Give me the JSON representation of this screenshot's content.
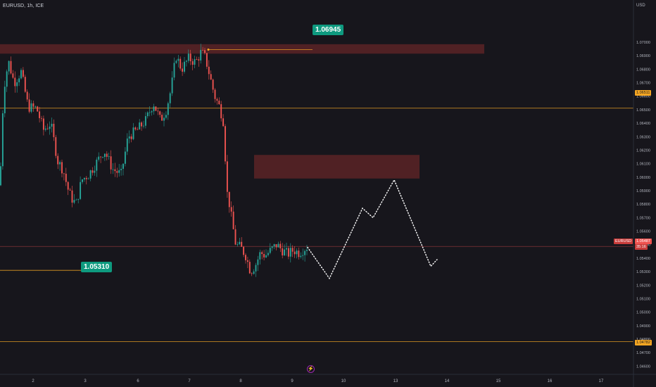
{
  "header": {
    "symbol": "EURUSD, 1h, ICE",
    "currency": "USD"
  },
  "colors": {
    "background": "#17161c",
    "bullish": "#26a69a",
    "bearish": "#ef5350",
    "supply_zone": "#5a2326",
    "horizontal_line": "#f5a623",
    "last_price_line": "#ef5350",
    "projection": "#ffffff",
    "callout": "#0e9a7f"
  },
  "annotations": {
    "high_callout": "1.06945",
    "low_callout": "1.05310",
    "level_upper": "1.06511",
    "level_lower": "1.04782",
    "symbol_tag": "EURUSD",
    "last_price": "1.05487",
    "countdown": "35:16",
    "alert_icon": "lightning-alert-icon"
  },
  "chart_data": {
    "type": "candlestick",
    "title": "EURUSD, 1h, ICE",
    "xlabel": "",
    "ylabel": "USD",
    "ylim": [
      1.0455,
      1.0725
    ],
    "grid": false,
    "x_ticks": [
      "2",
      "3",
      "6",
      "7",
      "8",
      "9",
      "10",
      "13",
      "14",
      "15",
      "16",
      "17"
    ],
    "y_ticks": [
      "1.07000",
      "1.06900",
      "1.06800",
      "1.06700",
      "1.06600",
      "1.06500",
      "1.06400",
      "1.06300",
      "1.06200",
      "1.06100",
      "1.06000",
      "1.05900",
      "1.05800",
      "1.05700",
      "1.05600",
      "1.05500",
      "1.05400",
      "1.05300",
      "1.05200",
      "1.05100",
      "1.05000",
      "1.04900",
      "1.04800",
      "1.04700",
      "1.04600"
    ],
    "price_path": [
      [
        0,
        1.0594
      ],
      [
        5,
        1.0665
      ],
      [
        12,
        1.0686
      ],
      [
        20,
        1.067
      ],
      [
        30,
        1.0678
      ],
      [
        40,
        1.0652
      ],
      [
        52,
        1.0651
      ],
      [
        62,
        1.0635
      ],
      [
        72,
        1.064
      ],
      [
        82,
        1.0612
      ],
      [
        90,
        1.0605
      ],
      [
        96,
        1.0592
      ],
      [
        101,
        1.0585
      ],
      [
        108,
        1.058
      ],
      [
        116,
        1.0598
      ],
      [
        126,
        1.0602
      ],
      [
        136,
        1.061
      ],
      [
        148,
        1.062
      ],
      [
        160,
        1.0606
      ],
      [
        172,
        1.0602
      ],
      [
        182,
        1.063
      ],
      [
        195,
        1.0635
      ],
      [
        207,
        1.0642
      ],
      [
        218,
        1.0655
      ],
      [
        228,
        1.0642
      ],
      [
        236,
        1.065
      ],
      [
        243,
        1.0665
      ],
      [
        250,
        1.069
      ],
      [
        258,
        1.068
      ],
      [
        268,
        1.0688
      ],
      [
        278,
        1.0685
      ],
      [
        286,
        1.0693
      ],
      [
        292,
        1.0688
      ],
      [
        298,
        1.0675
      ],
      [
        305,
        1.066
      ],
      [
        312,
        1.0652
      ],
      [
        318,
        1.064
      ],
      [
        322,
        1.059
      ],
      [
        326,
        1.058
      ],
      [
        330,
        1.0566
      ],
      [
        335,
        1.055
      ],
      [
        342,
        1.0548
      ],
      [
        349,
        1.0542
      ],
      [
        356,
        1.053
      ],
      [
        363,
        1.0535
      ],
      [
        370,
        1.0544
      ],
      [
        377,
        1.0542
      ],
      [
        385,
        1.0546
      ],
      [
        393,
        1.055
      ],
      [
        401,
        1.0546
      ],
      [
        409,
        1.0543
      ],
      [
        417,
        1.0546
      ],
      [
        425,
        1.0544
      ],
      [
        432,
        1.0547
      ],
      [
        438,
        1.0549
      ]
    ],
    "supply_zones": [
      {
        "x0": 0,
        "x1": 688,
        "top": 1.06985,
        "bottom": 1.06915
      },
      {
        "x0": 361,
        "x1": 596,
        "top": 1.06165,
        "bottom": 1.0599
      }
    ],
    "horizontal_levels": [
      {
        "label": "1.06945",
        "value": 1.06945,
        "x0": 296,
        "x1": 444,
        "style": "solid"
      },
      {
        "label": "1.05310",
        "value": 1.0531,
        "x0": 0,
        "x1": 115,
        "style": "solid"
      },
      {
        "label": "1.06511",
        "value": 1.06511,
        "x0": 0,
        "x1": 900,
        "style": "solid"
      },
      {
        "label": "1.04782",
        "value": 1.04782,
        "x0": 0,
        "x1": 900,
        "style": "solid"
      },
      {
        "label": "1.05487",
        "value": 1.05487,
        "x0": 0,
        "x1": 900,
        "style": "last"
      }
    ],
    "projection_path": [
      [
        437,
        1.0548
      ],
      [
        468,
        1.0525
      ],
      [
        515,
        1.0577
      ],
      [
        530,
        1.057
      ],
      [
        560,
        1.0598
      ],
      [
        612,
        1.0534
      ],
      [
        621,
        1.0539
      ]
    ]
  }
}
